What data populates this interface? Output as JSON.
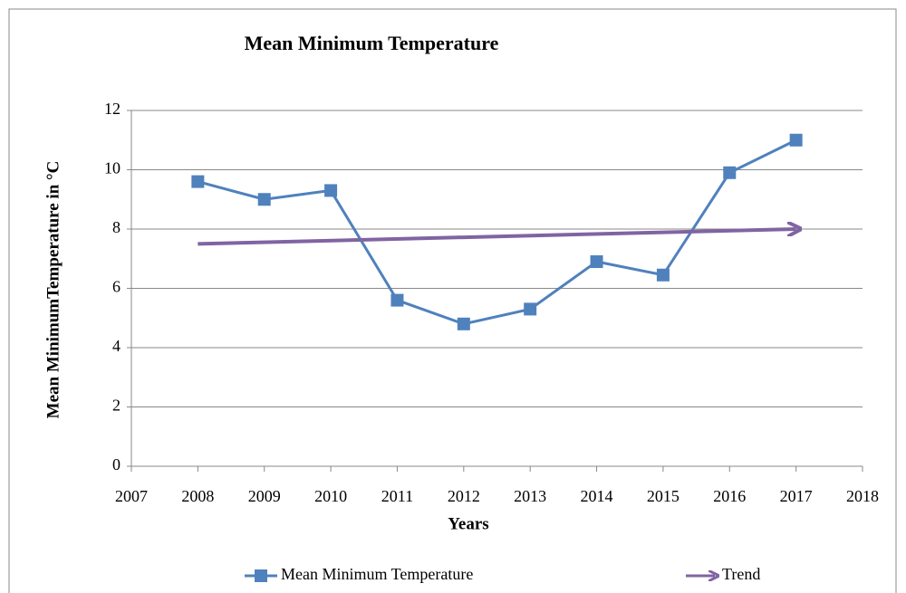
{
  "chart_data": {
    "type": "line",
    "title": "Mean Minimum  Temperature",
    "ylabel": "Mean MinimumTemperature in °C",
    "xlabel": "Years",
    "series": [
      {
        "name": "Mean Minimum Temperature",
        "color": "#4f81bd",
        "marker": "square",
        "x": [
          2008,
          2009,
          2010,
          2011,
          2012,
          2013,
          2014,
          2015,
          2016,
          2017
        ],
        "values": [
          9.6,
          9.0,
          9.3,
          5.6,
          4.8,
          5.3,
          6.9,
          6.45,
          9.9,
          11.0
        ]
      },
      {
        "name": "Trend",
        "color": "#8064a2",
        "marker": "arrow",
        "x": [
          2008,
          2017
        ],
        "values": [
          7.5,
          8.0
        ]
      }
    ],
    "xlim": [
      2007,
      2018
    ],
    "xticks": [
      2007,
      2008,
      2009,
      2010,
      2011,
      2012,
      2013,
      2014,
      2015,
      2016,
      2017,
      2018
    ],
    "ylim": [
      0,
      12
    ],
    "yticks": [
      0,
      2,
      4,
      6,
      8,
      10,
      12
    ],
    "grid": true,
    "legend": "bottom"
  }
}
